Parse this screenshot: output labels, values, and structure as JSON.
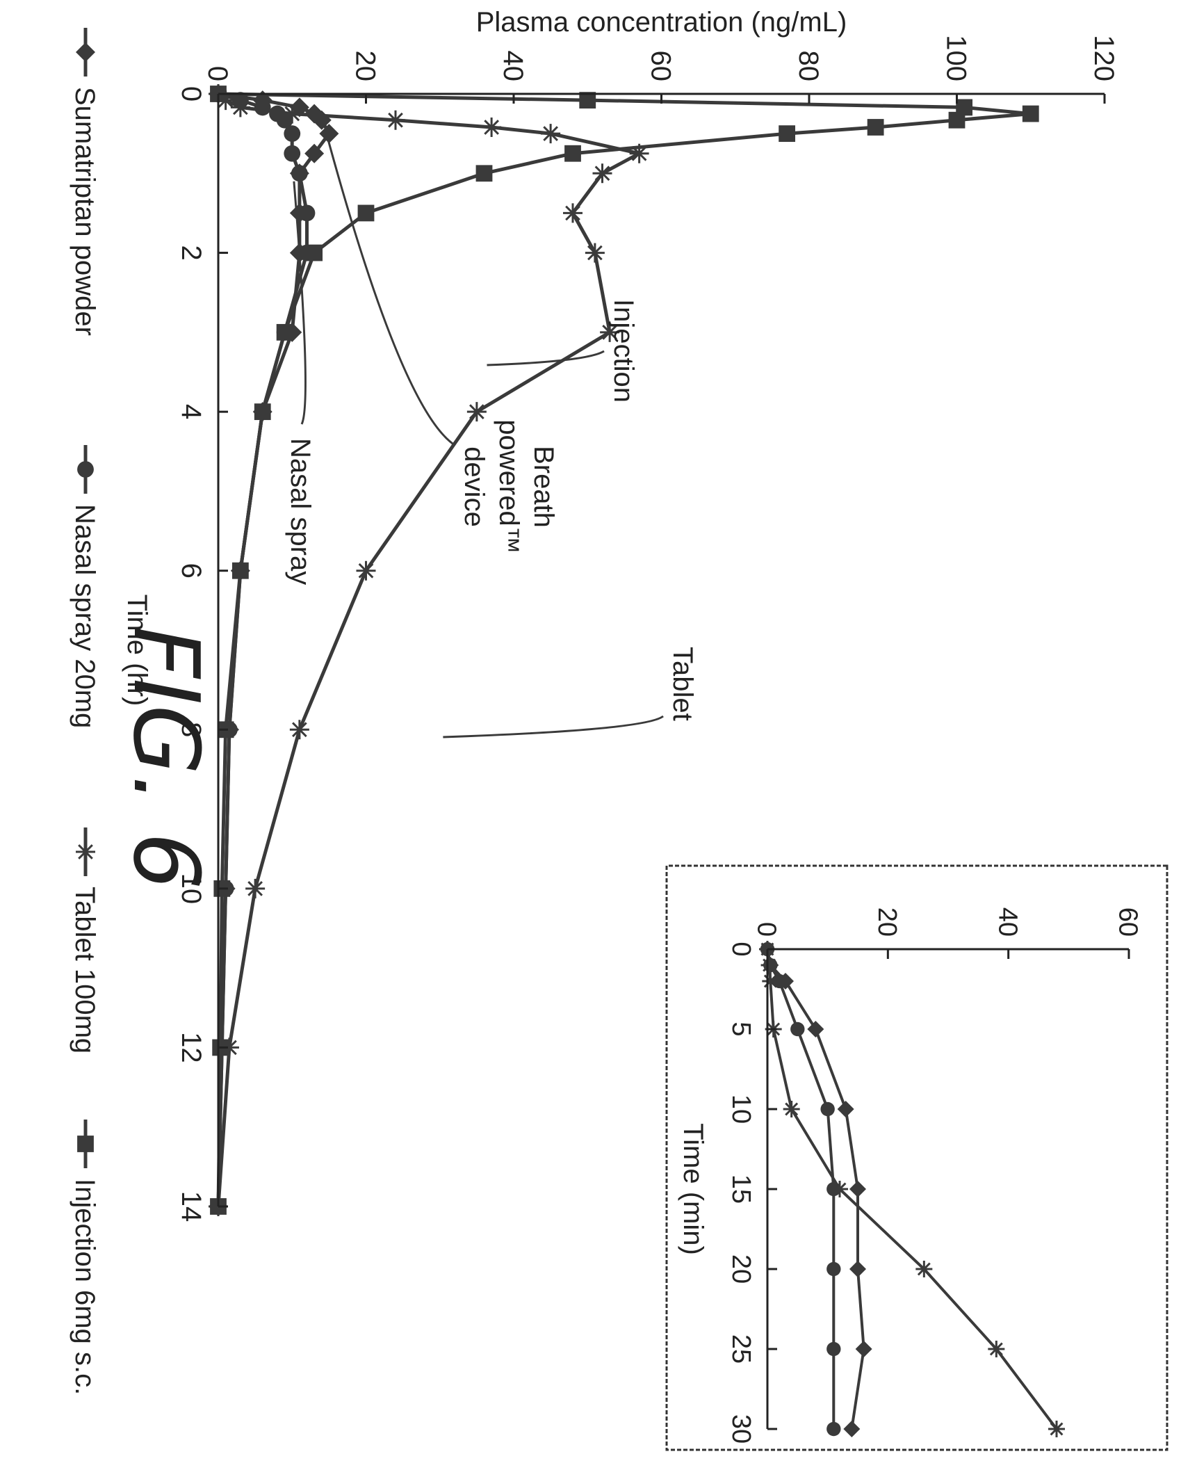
{
  "figure_label": "FIG. 6",
  "chart_data": [
    {
      "type": "line",
      "xlabel": "Time (hr)",
      "ylabel": "Plasma concentration (ng/mL)",
      "xlim": [
        0,
        14
      ],
      "ylim": [
        0,
        120
      ],
      "x_ticks": [
        0,
        2,
        4,
        6,
        8,
        10,
        12,
        14
      ],
      "y_ticks": [
        0,
        20,
        40,
        60,
        80,
        100,
        120
      ],
      "legend_position": "bottom",
      "grid": false,
      "series": [
        {
          "name": "Sumatriptan powder",
          "marker": "diamond",
          "points": [
            [
              0,
              0
            ],
            [
              0.08,
              6
            ],
            [
              0.17,
              11
            ],
            [
              0.25,
              13
            ],
            [
              0.33,
              14
            ],
            [
              0.5,
              15
            ],
            [
              0.75,
              13
            ],
            [
              1,
              11
            ],
            [
              1.5,
              11
            ],
            [
              2,
              11
            ],
            [
              3,
              10
            ],
            [
              4,
              6
            ],
            [
              6,
              3
            ],
            [
              8,
              1.5
            ],
            [
              10,
              1
            ],
            [
              12,
              0.5
            ],
            [
              14,
              0
            ]
          ]
        },
        {
          "name": "Nasal spray 20mg",
          "marker": "circle",
          "points": [
            [
              0,
              0
            ],
            [
              0.08,
              3
            ],
            [
              0.17,
              6
            ],
            [
              0.25,
              8
            ],
            [
              0.33,
              9
            ],
            [
              0.5,
              10
            ],
            [
              0.75,
              10
            ],
            [
              1,
              11
            ],
            [
              1.5,
              12
            ],
            [
              2,
              12
            ],
            [
              3,
              9
            ],
            [
              4,
              6
            ],
            [
              6,
              3
            ],
            [
              8,
              1.5
            ],
            [
              10,
              1
            ],
            [
              12,
              0.5
            ],
            [
              14,
              0
            ]
          ]
        },
        {
          "name": "Tablet 100mg",
          "marker": "star",
          "points": [
            [
              0,
              0
            ],
            [
              0.08,
              1
            ],
            [
              0.17,
              3
            ],
            [
              0.25,
              10
            ],
            [
              0.33,
              24
            ],
            [
              0.42,
              37
            ],
            [
              0.5,
              45
            ],
            [
              0.75,
              57
            ],
            [
              1,
              52
            ],
            [
              1.5,
              48
            ],
            [
              2,
              51
            ],
            [
              3,
              53
            ],
            [
              4,
              35
            ],
            [
              6,
              20
            ],
            [
              8,
              11
            ],
            [
              10,
              5
            ],
            [
              12,
              1.5
            ],
            [
              14,
              0
            ]
          ]
        },
        {
          "name": "Injection 6mg s.c.",
          "marker": "square",
          "points": [
            [
              0,
              0
            ],
            [
              0.08,
              50
            ],
            [
              0.17,
              101
            ],
            [
              0.25,
              110
            ],
            [
              0.33,
              100
            ],
            [
              0.42,
              89
            ],
            [
              0.5,
              77
            ],
            [
              0.75,
              48
            ],
            [
              1,
              36
            ],
            [
              1.5,
              20
            ],
            [
              2,
              13
            ],
            [
              3,
              9
            ],
            [
              4,
              6
            ],
            [
              6,
              3
            ],
            [
              8,
              1
            ],
            [
              10,
              0.5
            ],
            [
              12,
              0.3
            ],
            [
              14,
              0
            ]
          ]
        }
      ]
    },
    {
      "type": "line",
      "xlabel": "Time (min)",
      "xlim": [
        0,
        30
      ],
      "ylim": [
        0,
        60
      ],
      "x_ticks": [
        0,
        5,
        10,
        15,
        20,
        25,
        30
      ],
      "y_ticks": [
        0,
        20,
        40,
        60
      ],
      "grid": false,
      "series": [
        {
          "marker": "diamond",
          "points": [
            [
              0,
              0
            ],
            [
              1,
              0.5
            ],
            [
              2,
              3
            ],
            [
              5,
              8
            ],
            [
              10,
              13
            ],
            [
              15,
              15
            ],
            [
              20,
              15
            ],
            [
              25,
              16
            ],
            [
              30,
              14
            ]
          ]
        },
        {
          "marker": "circle",
          "points": [
            [
              0,
              0
            ],
            [
              1,
              0.5
            ],
            [
              2,
              2
            ],
            [
              5,
              5
            ],
            [
              10,
              10
            ],
            [
              15,
              11
            ],
            [
              20,
              11
            ],
            [
              25,
              11
            ],
            [
              30,
              11
            ]
          ]
        },
        {
          "marker": "star",
          "points": [
            [
              0,
              0
            ],
            [
              1,
              0.3
            ],
            [
              2,
              0.5
            ],
            [
              5,
              1
            ],
            [
              10,
              4
            ],
            [
              15,
              12
            ],
            [
              20,
              26
            ],
            [
              25,
              38
            ],
            [
              30,
              48
            ]
          ]
        }
      ]
    }
  ],
  "annotations": [
    {
      "text": "Tablet"
    },
    {
      "text": "Injection"
    },
    {
      "lines": [
        "Breath",
        "powered™",
        "device"
      ]
    },
    {
      "text": "Nasal spray"
    }
  ]
}
